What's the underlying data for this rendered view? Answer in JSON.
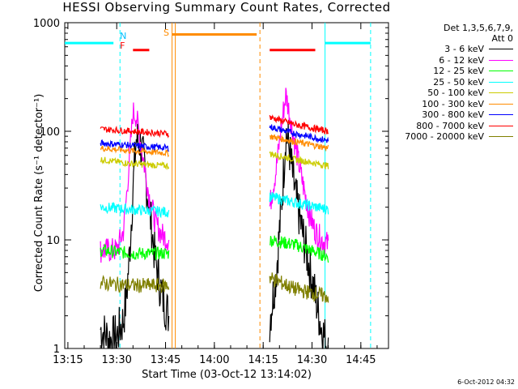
{
  "chart_data": {
    "type": "line",
    "title": "HESSI Observing Summary Count Rates, Corrected",
    "xlabel": "Start Time (03-Oct-12 13:14:02)",
    "ylabel": "Corrected Count Rate (s⁻¹ detector⁻¹)",
    "x_ticks": [
      "13:15",
      "13:30",
      "13:45",
      "14:00",
      "14:15",
      "14:30",
      "14:45"
    ],
    "x_range_minutes": [
      13.9,
      15.0
    ],
    "y_scale": "log",
    "ylim": [
      1,
      1000
    ],
    "y_ticks": [
      "1",
      "10",
      "100",
      "1000"
    ],
    "legend_title": [
      "Det 1,3,5,6,7,9,",
      "Att 0"
    ],
    "series": [
      {
        "name": "3 - 6 keV",
        "color": "#000000",
        "x": [
          "13:25",
          "13:28",
          "13:30",
          "13:32",
          "13:33",
          "13:34",
          "13:35",
          "13:36",
          "13:37",
          "13:38",
          "13:40",
          "13:42",
          "13:44",
          "13:46",
          "14:17",
          "14:19",
          "14:20",
          "14:21",
          "14:22",
          "14:23",
          "14:24",
          "14:25",
          "14:27",
          "14:29",
          "14:31",
          "14:33",
          "14:35"
        ],
        "y": [
          1.5,
          1.2,
          1.3,
          1.8,
          3,
          8,
          30,
          85,
          80,
          60,
          20,
          6,
          3,
          2,
          1.8,
          5,
          12,
          30,
          100,
          70,
          40,
          25,
          12,
          6,
          3,
          1.5,
          1
        ]
      },
      {
        "name": "6 - 12 keV",
        "color": "#ff00ff",
        "x": [
          "13:25",
          "13:28",
          "13:30",
          "13:32",
          "13:33",
          "13:34",
          "13:35",
          "13:36",
          "13:37",
          "13:38",
          "13:40",
          "13:42",
          "13:44",
          "13:46",
          "14:17",
          "14:19",
          "14:20",
          "14:21",
          "14:22",
          "14:23",
          "14:24",
          "14:25",
          "14:27",
          "14:29",
          "14:31",
          "14:33",
          "14:35"
        ],
        "y": [
          8,
          8,
          8,
          12,
          25,
          60,
          150,
          140,
          90,
          60,
          25,
          14,
          11,
          10,
          20,
          45,
          80,
          140,
          220,
          150,
          100,
          70,
          35,
          18,
          12,
          10,
          9
        ]
      },
      {
        "name": "12 - 25 keV",
        "color": "#00ff00",
        "x": [
          "13:25",
          "13:35",
          "13:46",
          "14:17",
          "14:25",
          "14:35"
        ],
        "y": [
          8,
          7.5,
          7.5,
          10,
          9,
          7
        ]
      },
      {
        "name": "25 - 50 keV",
        "color": "#00ffff",
        "x": [
          "13:25",
          "13:35",
          "13:46",
          "14:17",
          "14:25",
          "14:35"
        ],
        "y": [
          20,
          19,
          18,
          25,
          22,
          19
        ]
      },
      {
        "name": "50 - 100 keV",
        "color": "#cccc00",
        "x": [
          "13:25",
          "13:35",
          "13:46",
          "14:17",
          "14:25",
          "14:35"
        ],
        "y": [
          55,
          50,
          48,
          62,
          55,
          48
        ]
      },
      {
        "name": "100 - 300 keV",
        "color": "#ff8c00",
        "x": [
          "13:25",
          "13:35",
          "13:46",
          "14:17",
          "14:25",
          "14:35"
        ],
        "y": [
          70,
          66,
          63,
          90,
          80,
          70
        ]
      },
      {
        "name": "300 - 800 keV",
        "color": "#0000ff",
        "x": [
          "13:25",
          "13:35",
          "13:46",
          "14:17",
          "14:25",
          "14:35"
        ],
        "y": [
          78,
          74,
          70,
          110,
          95,
          82
        ]
      },
      {
        "name": "800 - 7000 keV",
        "color": "#ff0000",
        "x": [
          "13:25",
          "13:35",
          "13:46",
          "14:17",
          "14:25",
          "14:35"
        ],
        "y": [
          105,
          100,
          95,
          135,
          115,
          100
        ]
      },
      {
        "name": "7000 - 20000 keV",
        "color": "#808000",
        "x": [
          "13:25",
          "13:35",
          "13:46",
          "14:17",
          "14:25",
          "14:35"
        ],
        "y": [
          4,
          3.8,
          3.8,
          4.5,
          3.5,
          3
        ]
      }
    ],
    "annotations": [
      {
        "label": "N",
        "color": "#00bfff",
        "x": "13:31"
      },
      {
        "label": "F",
        "color": "#ff0000",
        "x": "13:31"
      },
      {
        "label": "S",
        "color": "#ff8c00",
        "x": "13:46"
      }
    ]
  },
  "timestamp": "6-Oct-2012 04:32"
}
